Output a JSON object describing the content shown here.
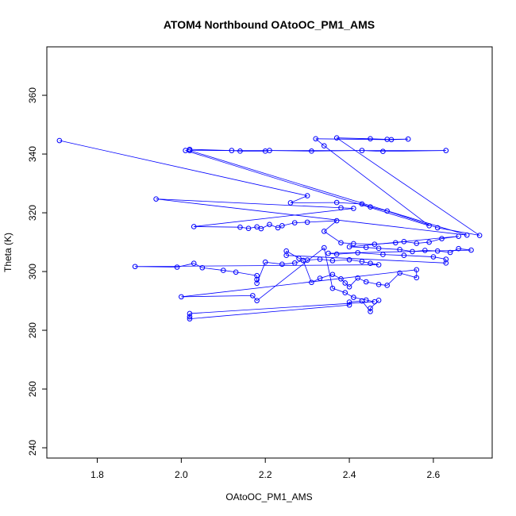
{
  "chart_data": {
    "type": "scatter",
    "title": "ATOM4 Northbound OAtoOC_PM1_AMS",
    "xlabel": "OAtoOC_PM1_AMS",
    "ylabel": "Theta (K)",
    "xlim": [
      1.68,
      2.74
    ],
    "ylim": [
      236.5,
      376.5
    ],
    "x_ticks": [
      1.8,
      2.0,
      2.2,
      2.4,
      2.6
    ],
    "x_tick_labels": [
      "1.8",
      "2.0",
      "2.2",
      "2.4",
      "2.6"
    ],
    "y_ticks": [
      240,
      260,
      280,
      300,
      320,
      340,
      360
    ],
    "y_tick_labels": [
      "240",
      "260",
      "280",
      "300",
      "320",
      "340",
      "360"
    ],
    "grid": false,
    "legend": "none",
    "style": "points-connected-by-lines",
    "color": "#0000ff",
    "series": [
      {
        "points": [
          [
            1.71,
            344.6
          ],
          [
            2.3,
            325.8
          ],
          [
            2.26,
            323.4
          ],
          [
            2.37,
            323.5
          ],
          [
            2.43,
            323.0
          ],
          [
            2.45,
            322.0
          ],
          [
            2.49,
            320.6
          ],
          [
            2.61,
            314.9
          ],
          [
            2.71,
            312.3
          ],
          [
            2.37,
            345.5
          ],
          [
            2.45,
            345.2
          ],
          [
            2.49,
            345.0
          ],
          [
            2.54,
            345.1
          ],
          [
            2.5,
            344.9
          ],
          [
            2.32,
            345.2
          ],
          [
            2.34,
            342.8
          ],
          [
            2.59,
            315.6
          ],
          [
            2.01,
            341.2
          ],
          [
            2.02,
            341.6
          ],
          [
            2.12,
            341.2
          ],
          [
            2.14,
            341.0
          ],
          [
            2.2,
            341.0
          ],
          [
            2.21,
            341.2
          ],
          [
            2.31,
            341.0
          ],
          [
            2.43,
            341.2
          ],
          [
            2.48,
            340.9
          ],
          [
            2.63,
            341.2
          ],
          [
            2.02,
            341.2
          ],
          [
            2.68,
            312.4
          ],
          [
            1.94,
            324.7
          ],
          [
            2.38,
            321.7
          ],
          [
            2.41,
            321.5
          ],
          [
            2.03,
            315.3
          ],
          [
            2.14,
            315.1
          ],
          [
            2.16,
            314.7
          ],
          [
            2.18,
            315.2
          ],
          [
            2.19,
            314.6
          ],
          [
            2.21,
            316.0
          ],
          [
            2.23,
            314.9
          ],
          [
            2.24,
            315.6
          ],
          [
            2.27,
            316.6
          ],
          [
            2.3,
            316.8
          ],
          [
            2.37,
            317.3
          ],
          [
            2.34,
            313.7
          ],
          [
            2.38,
            309.8
          ],
          [
            2.41,
            309.5
          ],
          [
            2.46,
            309.3
          ],
          [
            2.51,
            309.8
          ],
          [
            2.53,
            310.2
          ],
          [
            2.56,
            309.6
          ],
          [
            2.59,
            310.0
          ],
          [
            2.62,
            311.2
          ],
          [
            2.66,
            312.0
          ],
          [
            2.4,
            308.4
          ],
          [
            2.44,
            308.2
          ],
          [
            2.47,
            307.9
          ],
          [
            2.52,
            307.5
          ],
          [
            2.55,
            306.8
          ],
          [
            2.58,
            307.2
          ],
          [
            2.61,
            307.0
          ],
          [
            2.64,
            306.5
          ],
          [
            2.66,
            307.8
          ],
          [
            2.69,
            307.3
          ],
          [
            2.35,
            306.2
          ],
          [
            2.37,
            305.9
          ],
          [
            2.42,
            306.4
          ],
          [
            2.48,
            305.8
          ],
          [
            2.53,
            305.5
          ],
          [
            2.6,
            305.0
          ],
          [
            2.63,
            304.2
          ],
          [
            2.63,
            302.9
          ],
          [
            2.25,
            305.5
          ],
          [
            2.25,
            307.0
          ],
          [
            2.28,
            304.5
          ],
          [
            2.3,
            303.9
          ],
          [
            2.33,
            304.2
          ],
          [
            2.36,
            303.7
          ],
          [
            2.4,
            304.0
          ],
          [
            2.43,
            303.4
          ],
          [
            2.45,
            302.8
          ],
          [
            2.47,
            302.3
          ],
          [
            1.89,
            301.7
          ],
          [
            1.99,
            301.5
          ],
          [
            2.03,
            302.8
          ],
          [
            2.05,
            301.3
          ],
          [
            2.1,
            300.4
          ],
          [
            2.13,
            299.8
          ],
          [
            2.18,
            298.6
          ],
          [
            2.18,
            297.3
          ],
          [
            2.18,
            296.0
          ],
          [
            2.2,
            303.2
          ],
          [
            2.24,
            302.5
          ],
          [
            2.27,
            302.9
          ],
          [
            2.29,
            303.8
          ],
          [
            2.31,
            296.3
          ],
          [
            2.33,
            297.7
          ],
          [
            2.36,
            299.0
          ],
          [
            2.38,
            297.5
          ],
          [
            2.39,
            296.1
          ],
          [
            2.4,
            294.8
          ],
          [
            2.42,
            297.8
          ],
          [
            2.44,
            296.5
          ],
          [
            2.47,
            295.6
          ],
          [
            2.49,
            295.3
          ],
          [
            2.52,
            299.5
          ],
          [
            2.56,
            297.9
          ],
          [
            2.56,
            300.6
          ],
          [
            2.0,
            291.4
          ],
          [
            2.17,
            291.8
          ],
          [
            2.18,
            290.1
          ],
          [
            2.34,
            308.1
          ],
          [
            2.36,
            294.3
          ],
          [
            2.39,
            292.8
          ],
          [
            2.41,
            291.2
          ],
          [
            2.44,
            290.3
          ],
          [
            2.46,
            289.7
          ],
          [
            2.02,
            285.7
          ],
          [
            2.02,
            284.6
          ],
          [
            2.02,
            283.9
          ],
          [
            2.4,
            288.6
          ],
          [
            2.4,
            289.6
          ],
          [
            2.43,
            290.0
          ],
          [
            2.45,
            286.4
          ],
          [
            2.45,
            287.5
          ],
          [
            2.47,
            290.2
          ]
        ]
      }
    ]
  }
}
